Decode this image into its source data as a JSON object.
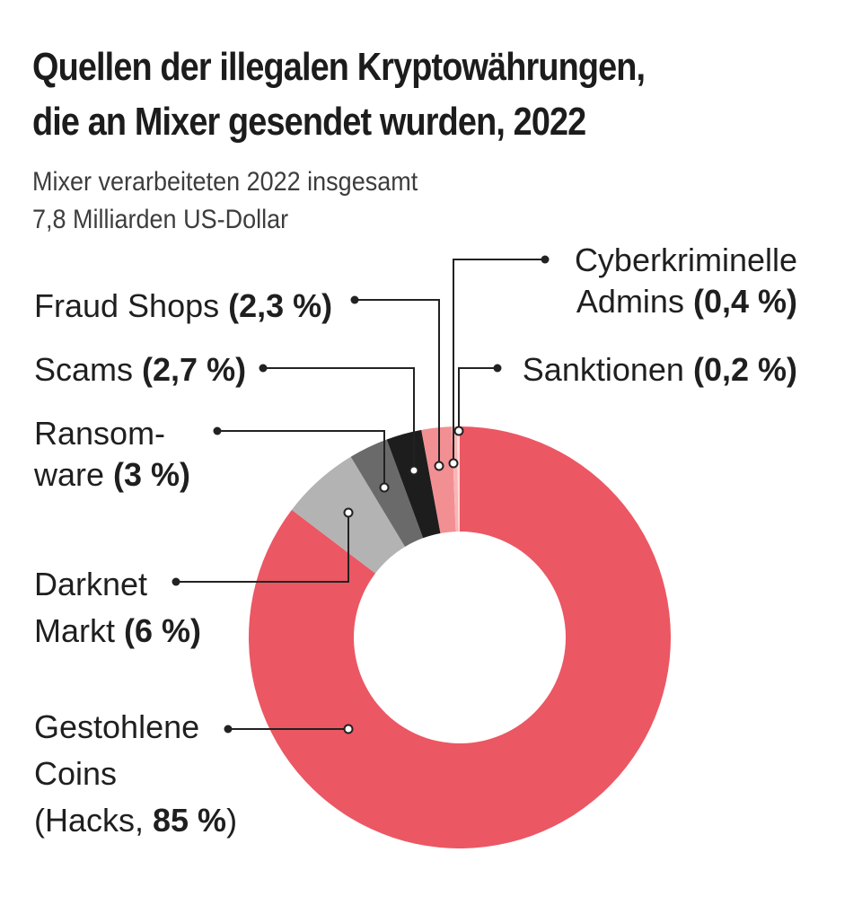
{
  "title_lines": [
    "Quellen der illegalen Kryptowährungen,",
    "die an Mixer gesendet wurden, 2022"
  ],
  "subtitle_lines": [
    "Mixer verarbeiteten 2022 insgesamt",
    "7,8 Milliarden US-Dollar"
  ],
  "colors": {
    "hacks": "#eb5763",
    "darknet": "#b3b3b3",
    "ransomware": "#6a6a6a",
    "scams": "#1d1d1d",
    "fraud": "#f28f92",
    "cyber": "#f7b6b6",
    "sanktionen": "#fbd6d6",
    "leader": "#222222"
  },
  "chart_data": {
    "type": "pie",
    "donut": true,
    "slices": [
      {
        "key": "hacks",
        "value": 85,
        "label_lines": [
          [
            {
              "t": "Gestohlene"
            }
          ],
          [
            {
              "t": "Coins"
            }
          ],
          [
            {
              "t": "(Hacks, "
            },
            {
              "t": "85 %",
              "b": true
            },
            {
              "t": ")"
            }
          ]
        ]
      },
      {
        "key": "darknet",
        "value": 6,
        "label_lines": [
          [
            {
              "t": "Darknet"
            }
          ],
          [
            {
              "t": "Markt "
            },
            {
              "t": "(6 %)",
              "b": true
            }
          ]
        ]
      },
      {
        "key": "ransomware",
        "value": 3,
        "label_lines": [
          [
            {
              "t": "Ransom-"
            }
          ],
          [
            {
              "t": "ware "
            },
            {
              "t": "(3 %)",
              "b": true
            }
          ]
        ]
      },
      {
        "key": "scams",
        "value": 2.7,
        "label_lines": [
          [
            {
              "t": "Scams "
            },
            {
              "t": "(2,7 %)",
              "b": true
            }
          ]
        ]
      },
      {
        "key": "fraud",
        "value": 2.3,
        "label_lines": [
          [
            {
              "t": "Fraud Shops "
            },
            {
              "t": "(2,3 %)",
              "b": true
            }
          ]
        ]
      },
      {
        "key": "cyber",
        "value": 0.4,
        "label_lines": [
          [
            {
              "t": "Cyberkriminelle"
            }
          ],
          [
            {
              "t": "Admins "
            },
            {
              "t": "(0,4 %)",
              "b": true
            }
          ]
        ]
      },
      {
        "key": "sanktionen",
        "value": 0.2,
        "label_lines": [
          [
            {
              "t": "Sanktionen "
            },
            {
              "t": "(0,2 %)",
              "b": true
            }
          ]
        ]
      }
    ]
  }
}
